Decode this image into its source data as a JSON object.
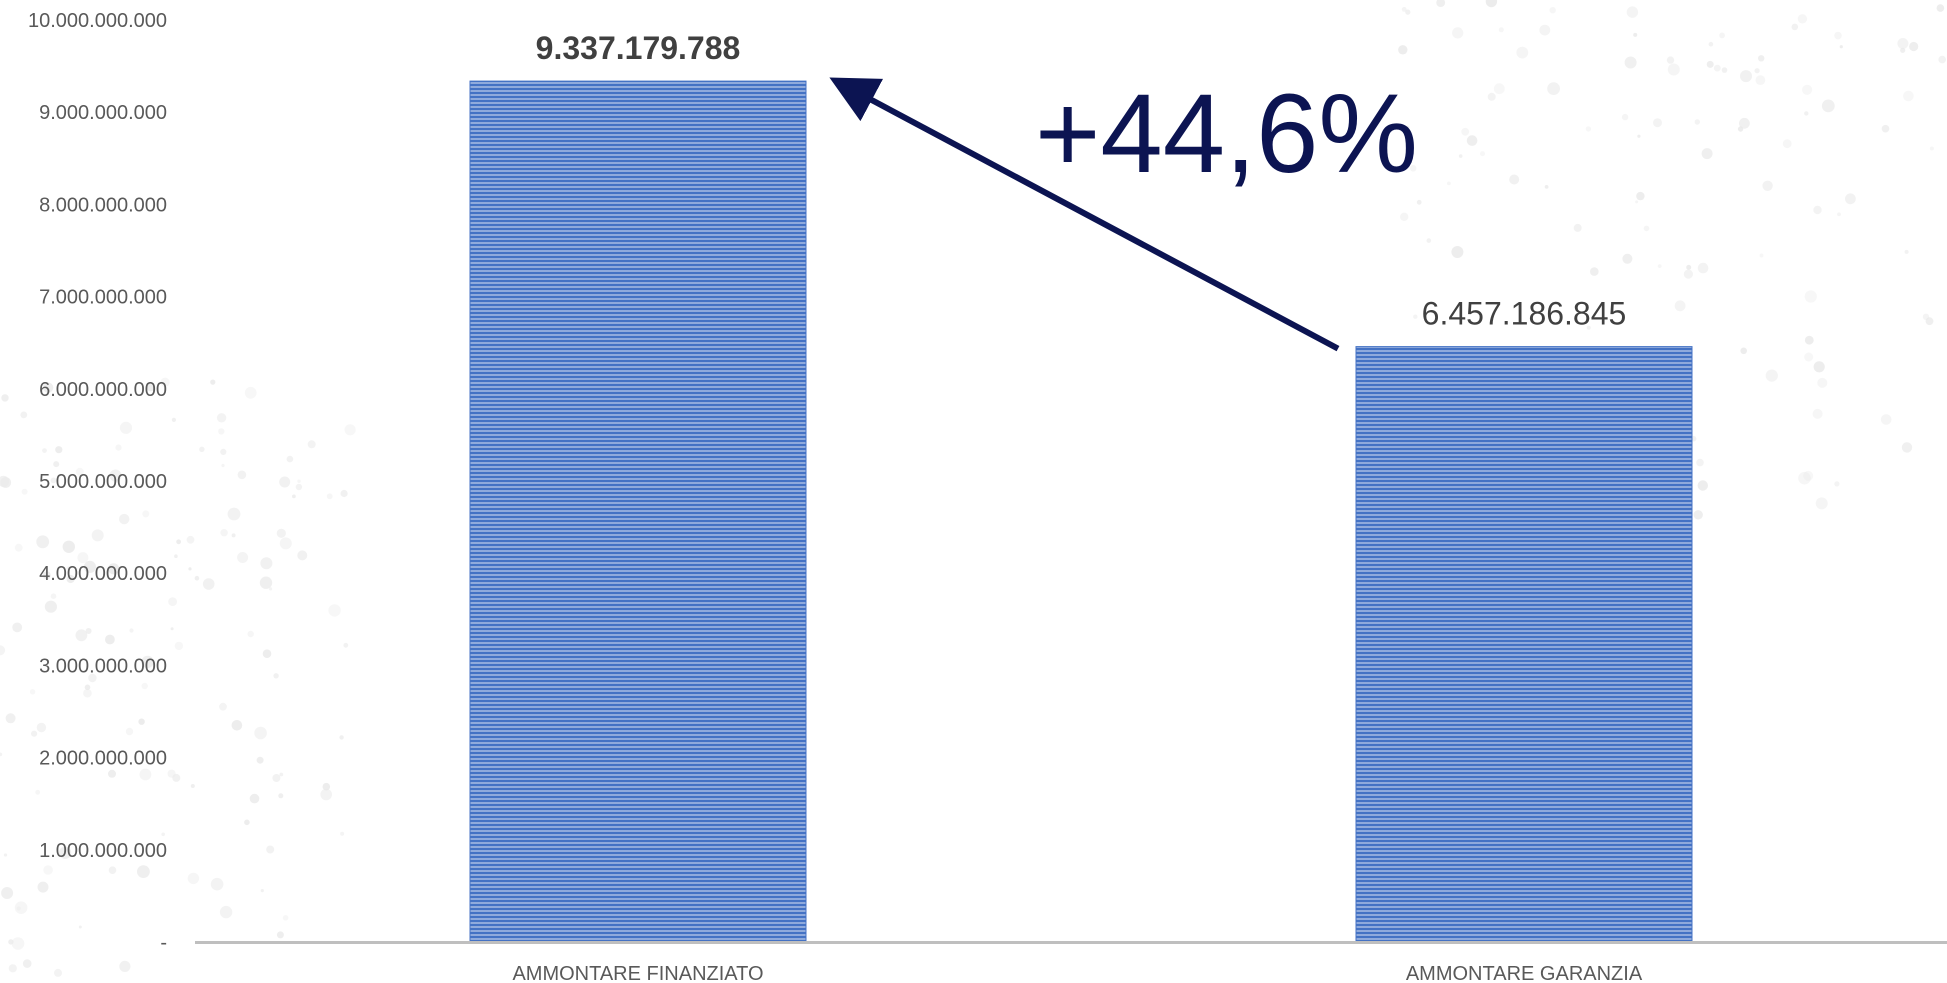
{
  "chart_data": {
    "type": "bar",
    "categories": [
      "AMMONTARE FINANZIATO",
      "AMMONTARE GARANZIA"
    ],
    "values": [
      9337179788,
      6457186845
    ],
    "data_labels": [
      "9.337.179.788",
      "6.457.186.845"
    ],
    "y_ticks": [
      0,
      1000000000,
      2000000000,
      3000000000,
      4000000000,
      5000000000,
      6000000000,
      7000000000,
      8000000000,
      9000000000,
      10000000000
    ],
    "y_tick_labels": [
      "-",
      "1.000.000.000",
      "2.000.000.000",
      "3.000.000.000",
      "4.000.000.000",
      "5.000.000.000",
      "6.000.000.000",
      "7.000.000.000",
      "8.000.000.000",
      "9.000.000.000",
      "10.000.000.000"
    ],
    "ylim": [
      0,
      10000000000
    ],
    "grid": false,
    "legend": "none",
    "annotation": {
      "text": "+44,6%",
      "arrow_from": "AMMONTARE GARANZIA",
      "arrow_to": "AMMONTARE FINANZIATO"
    },
    "colors": {
      "bar": "#4472c4",
      "bar_stripe": "#8faadc",
      "arrow": "#0c1452",
      "axis": "#bfbfbf"
    }
  }
}
